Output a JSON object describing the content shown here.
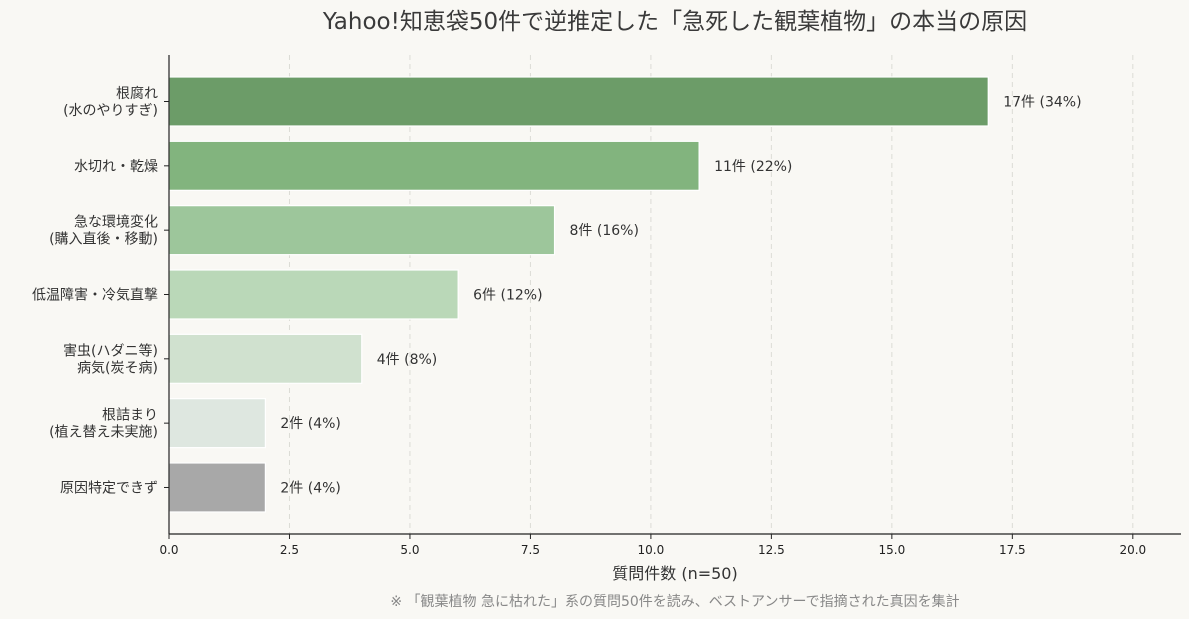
{
  "chart_data": {
    "type": "bar",
    "orientation": "horizontal",
    "title": "Yahoo!知恵袋50件で逆推定した「急死した観葉植物」の本当の原因",
    "xlabel": "質問件数 (n=50)",
    "ylabel": "",
    "note": "※ 「観葉植物 急に枯れた」系の質問50件を読み、ベストアンサーで指摘された真因を集計",
    "xlim": [
      0,
      21
    ],
    "xticks": [
      "0.0",
      "2.5",
      "5.0",
      "7.5",
      "10.0",
      "12.5",
      "15.0",
      "17.5",
      "20.0"
    ],
    "grid": "vertical dashed",
    "categories": [
      [
        "根腐れ",
        "(水のやりすぎ)"
      ],
      [
        "水切れ・乾燥"
      ],
      [
        "急な環境変化",
        "(購入直後・移動)"
      ],
      [
        "低温障害・冷気直撃"
      ],
      [
        "害虫(ハダニ等)",
        "病気(炭そ病)"
      ],
      [
        "根詰まり",
        "(植え替え未実施)"
      ],
      [
        "原因特定できず"
      ]
    ],
    "values": [
      17,
      11,
      8,
      6,
      4,
      2,
      2
    ],
    "data_labels": [
      "17件 (34%)",
      "11件 (22%)",
      "8件 (16%)",
      "6件 (12%)",
      "4件 (8%)",
      "2件 (4%)",
      "2件 (4%)"
    ],
    "colors": [
      "#6c9c68",
      "#82b47e",
      "#9dc69b",
      "#bad8b8",
      "#d0e1cf",
      "#dee7e0",
      "#a8a8a8"
    ]
  }
}
